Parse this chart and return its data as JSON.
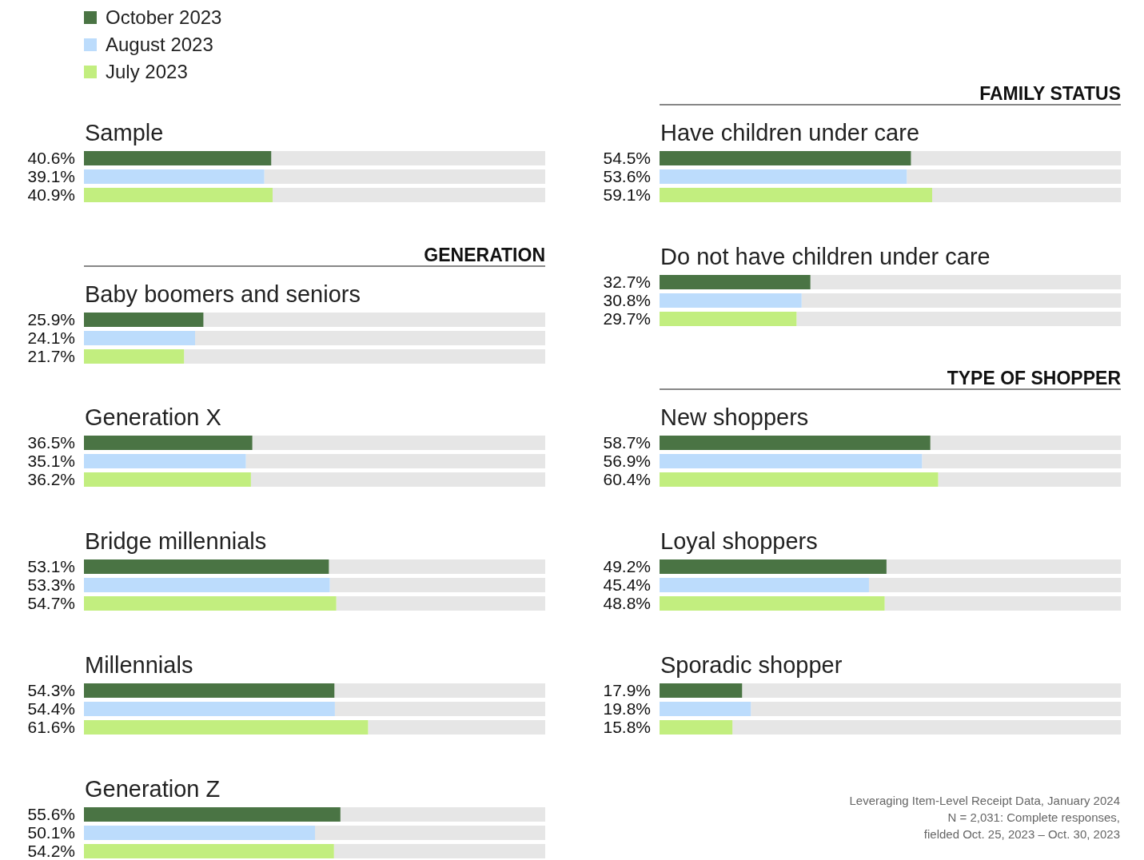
{
  "chart_data": [
    {
      "type": "bar",
      "orientation": "horizontal",
      "title": "Sample",
      "categories": [
        null
      ],
      "xlim": [
        0,
        100
      ],
      "tick_labels": false,
      "legend": "top",
      "series": [
        {
          "name": "October 2023",
          "color": "#4a7444",
          "values": [
            40.6
          ],
          "value_labels": [
            "40.6%"
          ]
        },
        {
          "name": "August 2023",
          "color": "#bcdcfc",
          "values": [
            39.1
          ],
          "value_labels": [
            "39.1%"
          ]
        },
        {
          "name": "July 2023",
          "color": "#c2ee7f",
          "values": [
            40.9
          ],
          "value_labels": [
            "40.9%"
          ]
        }
      ]
    },
    {
      "type": "bar",
      "orientation": "horizontal",
      "subtitle": "GENERATION",
      "title": "Baby boomers and seniors",
      "categories": [
        null
      ],
      "xlim": [
        0,
        100
      ],
      "tick_labels": false,
      "series": [
        {
          "color": "#4a7444",
          "values": [
            25.9
          ],
          "value_labels": [
            "25.9%"
          ]
        },
        {
          "color": "#bcdcfc",
          "values": [
            24.1
          ],
          "value_labels": [
            "24.1%"
          ]
        },
        {
          "color": "#c2ee7f",
          "values": [
            21.7
          ],
          "value_labels": [
            "21.7%"
          ]
        }
      ]
    },
    {
      "type": "bar",
      "orientation": "horizontal",
      "title": "Generation X",
      "categories": [
        null
      ],
      "xlim": [
        0,
        100
      ],
      "tick_labels": false,
      "series": [
        {
          "color": "#4a7444",
          "values": [
            36.5
          ],
          "value_labels": [
            "36.5%"
          ]
        },
        {
          "color": "#bcdcfc",
          "values": [
            35.1
          ],
          "value_labels": [
            "35.1%"
          ]
        },
        {
          "color": "#c2ee7f",
          "values": [
            36.2
          ],
          "value_labels": [
            "36.2%"
          ]
        }
      ]
    },
    {
      "type": "bar",
      "orientation": "horizontal",
      "title": "Bridge millennials",
      "categories": [
        null
      ],
      "xlim": [
        0,
        100
      ],
      "tick_labels": false,
      "series": [
        {
          "color": "#4a7444",
          "values": [
            53.1
          ],
          "value_labels": [
            "53.1%"
          ]
        },
        {
          "color": "#bcdcfc",
          "values": [
            53.3
          ],
          "value_labels": [
            "53.3%"
          ]
        },
        {
          "color": "#c2ee7f",
          "values": [
            54.7
          ],
          "value_labels": [
            "54.7%"
          ]
        }
      ]
    },
    {
      "type": "bar",
      "orientation": "horizontal",
      "title": "Millennials",
      "categories": [
        null
      ],
      "xlim": [
        0,
        100
      ],
      "tick_labels": false,
      "series": [
        {
          "color": "#4a7444",
          "values": [
            54.3
          ],
          "value_labels": [
            "54.3%"
          ]
        },
        {
          "color": "#bcdcfc",
          "values": [
            54.4
          ],
          "value_labels": [
            "54.4%"
          ]
        },
        {
          "color": "#c2ee7f",
          "values": [
            61.6
          ],
          "value_labels": [
            "61.6%"
          ]
        }
      ]
    },
    {
      "type": "bar",
      "orientation": "horizontal",
      "title": "Generation Z",
      "categories": [
        null
      ],
      "xlim": [
        0,
        100
      ],
      "tick_labels": false,
      "series": [
        {
          "color": "#4a7444",
          "values": [
            55.6
          ],
          "value_labels": [
            "55.6%"
          ]
        },
        {
          "color": "#bcdcfc",
          "values": [
            50.1
          ],
          "value_labels": [
            "50.1%"
          ]
        },
        {
          "color": "#c2ee7f",
          "values": [
            54.2
          ],
          "value_labels": [
            "54.2%"
          ]
        }
      ]
    },
    {
      "type": "bar",
      "orientation": "horizontal",
      "subtitle": "FAMILY STATUS",
      "title": "Have children under care",
      "categories": [
        null
      ],
      "xlim": [
        0,
        100
      ],
      "tick_labels": false,
      "series": [
        {
          "color": "#4a7444",
          "values": [
            54.5
          ],
          "value_labels": [
            "54.5%"
          ]
        },
        {
          "color": "#bcdcfc",
          "values": [
            53.6
          ],
          "value_labels": [
            "53.6%"
          ]
        },
        {
          "color": "#c2ee7f",
          "values": [
            59.1
          ],
          "value_labels": [
            "59.1%"
          ]
        }
      ]
    },
    {
      "type": "bar",
      "orientation": "horizontal",
      "title": "Do not have children under care",
      "categories": [
        null
      ],
      "xlim": [
        0,
        100
      ],
      "tick_labels": false,
      "series": [
        {
          "color": "#4a7444",
          "values": [
            32.7
          ],
          "value_labels": [
            "32.7%"
          ]
        },
        {
          "color": "#bcdcfc",
          "values": [
            30.8
          ],
          "value_labels": [
            "30.8%"
          ]
        },
        {
          "color": "#c2ee7f",
          "values": [
            29.7
          ],
          "value_labels": [
            "29.7%"
          ]
        }
      ]
    },
    {
      "type": "bar",
      "orientation": "horizontal",
      "subtitle": "TYPE OF SHOPPER",
      "title": "New shoppers",
      "categories": [
        null
      ],
      "xlim": [
        0,
        100
      ],
      "tick_labels": false,
      "series": [
        {
          "color": "#4a7444",
          "values": [
            58.7
          ],
          "value_labels": [
            "58.7%"
          ]
        },
        {
          "color": "#bcdcfc",
          "values": [
            56.9
          ],
          "value_labels": [
            "56.9%"
          ]
        },
        {
          "color": "#c2ee7f",
          "values": [
            60.4
          ],
          "value_labels": [
            "60.4%"
          ]
        }
      ]
    },
    {
      "type": "bar",
      "orientation": "horizontal",
      "title": "Loyal shoppers",
      "categories": [
        null
      ],
      "xlim": [
        0,
        100
      ],
      "tick_labels": false,
      "series": [
        {
          "color": "#4a7444",
          "values": [
            49.2
          ],
          "value_labels": [
            "49.2%"
          ]
        },
        {
          "color": "#bcdcfc",
          "values": [
            45.4
          ],
          "value_labels": [
            "45.4%"
          ]
        },
        {
          "color": "#c2ee7f",
          "values": [
            48.8
          ],
          "value_labels": [
            "48.8%"
          ]
        }
      ]
    },
    {
      "type": "bar",
      "orientation": "horizontal",
      "title": "Sporadic shopper",
      "categories": [
        null
      ],
      "xlim": [
        0,
        100
      ],
      "tick_labels": false,
      "annotations": [
        "Leveraging Item-Level Receipt Data, January 2024",
        "N = 2,031: Complete responses,",
        "fielded Oct. 25, 2023 – Oct. 30, 2023"
      ],
      "series": [
        {
          "color": "#4a7444",
          "values": [
            17.9
          ],
          "value_labels": [
            "17.9%"
          ]
        },
        {
          "color": "#bcdcfc",
          "values": [
            19.8
          ],
          "value_labels": [
            "19.8%"
          ]
        },
        {
          "color": "#c2ee7f",
          "values": [
            15.8
          ],
          "value_labels": [
            "15.8%"
          ]
        }
      ]
    }
  ]
}
